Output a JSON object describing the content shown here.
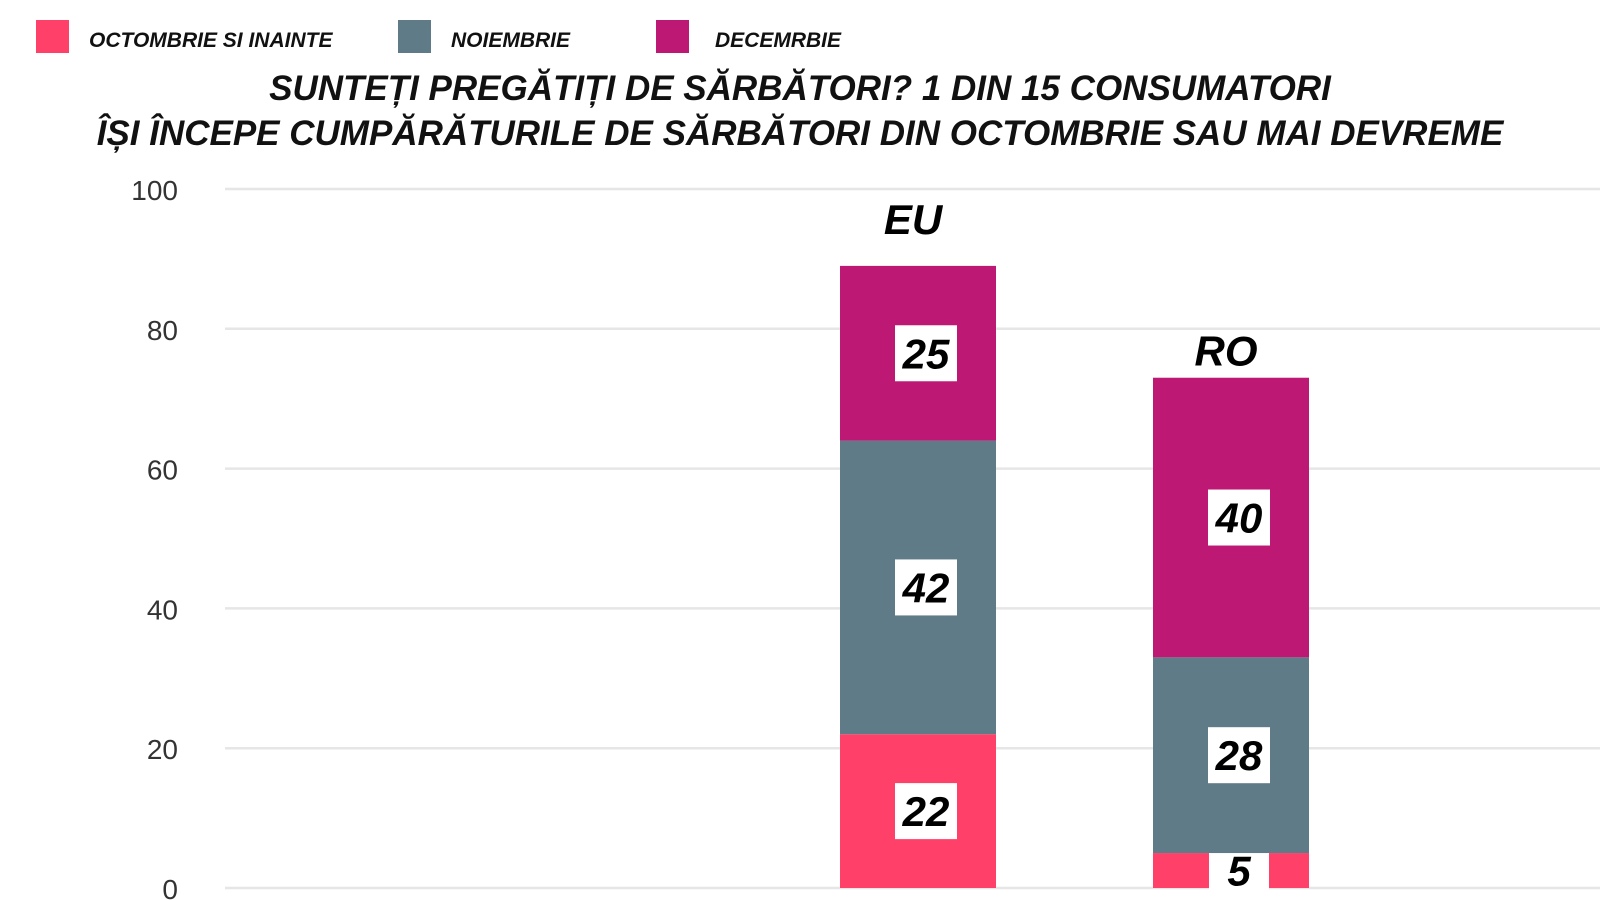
{
  "chart_data": {
    "type": "bar",
    "stacked": true,
    "title": [
      "SUNTEȚI PREGĂTIȚI DE SĂRBĂTORI? 1 DIN 15 CONSUMATORI",
      "ÎȘI ÎNCEPE CUMPĂRĂTURILE DE SĂRBĂTORI DIN OCTOMBRIE SAU MAI DEVREME"
    ],
    "xlabel": "",
    "ylabel": "",
    "ylim": [
      0,
      100
    ],
    "yticks": [
      0,
      20,
      40,
      60,
      80,
      100
    ],
    "grid": true,
    "legend_position": "top-left",
    "categories": [
      "EU",
      "RO"
    ],
    "series": [
      {
        "name": "OCTOMBRIE SI INAINTE",
        "color": "#FF4068",
        "values": [
          22,
          5
        ]
      },
      {
        "name": "NOIEMBRIE",
        "color": "#607B88",
        "values": [
          42,
          28
        ]
      },
      {
        "name": "DECEMRBIE",
        "color": "#BC1874",
        "values": [
          25,
          40
        ]
      }
    ]
  }
}
